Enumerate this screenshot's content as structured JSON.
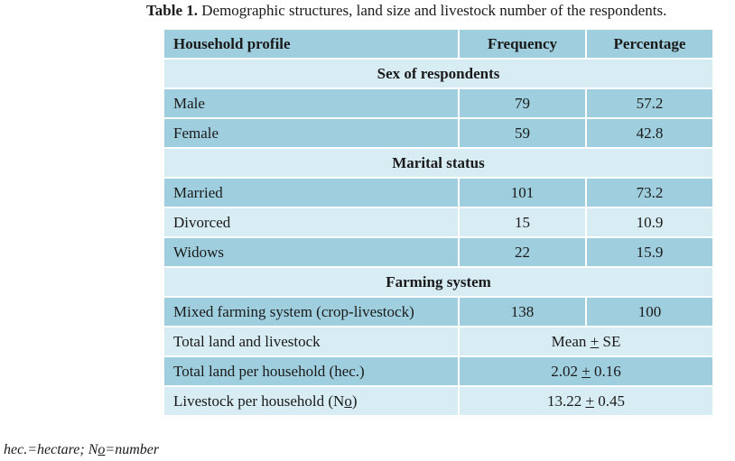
{
  "caption": {
    "label": "Table 1.",
    "text": " Demographic structures, land size and livestock number of the respondents."
  },
  "table": {
    "headers": [
      "Household profile",
      "Frequency",
      "Percentage"
    ],
    "sections": [
      {
        "title": "Sex of respondents",
        "rows": [
          {
            "profile": "Male",
            "frequency": "79",
            "percentage": "57.2"
          },
          {
            "profile": "Female",
            "frequency": "59",
            "percentage": "42.8"
          }
        ]
      },
      {
        "title": "Marital status",
        "rows": [
          {
            "profile": "Married",
            "frequency": "101",
            "percentage": "73.2"
          },
          {
            "profile": "Divorced",
            "frequency": "15",
            "percentage": "10.9"
          },
          {
            "profile": "Widows",
            "frequency": "22",
            "percentage": "15.9"
          }
        ]
      },
      {
        "title": "Farming system",
        "rows": [
          {
            "profile": "Mixed farming system (crop-livestock)",
            "frequency": "138",
            "percentage": "100"
          }
        ]
      }
    ],
    "land_livestock": {
      "label": "Total land and livestock",
      "stat_prefix": "Mean ",
      "stat_pm": "+",
      "stat_suffix": " SE",
      "rows": [
        {
          "profile_pre": "Total land per household (hec.)",
          "profile_u": "",
          "profile_post": "",
          "mean": "2.02 ",
          "pm": "+",
          "se": " 0.16"
        },
        {
          "profile_pre": "Livestock per household (N",
          "profile_u": "o",
          "profile_post": ")",
          "mean": "13.22 ",
          "pm": "+",
          "se": " 0.45"
        }
      ]
    }
  },
  "footnote": {
    "pre": "hec.=hectare; N",
    "u": "o",
    "post": "=number"
  },
  "colors": {
    "dark_row": "#9fcfde",
    "light_row": "#d7ecf3",
    "border": "#7fbfd4"
  }
}
